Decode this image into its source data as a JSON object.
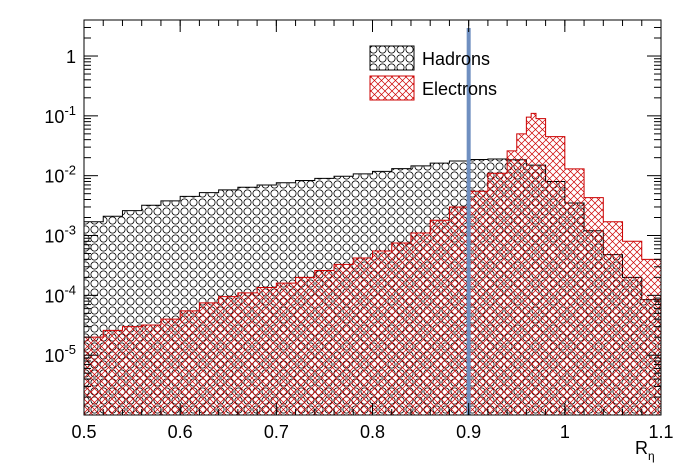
{
  "chart_data": {
    "type": "area",
    "xlabel": "R",
    "xlabel_sub": "η",
    "ylabel": "",
    "xlim": [
      0.5,
      1.1
    ],
    "ylim": [
      1e-06,
      4.0
    ],
    "yscale": "log",
    "grid": false,
    "legend_position": "top-center",
    "x_ticks": [
      0.5,
      0.6,
      0.7,
      0.8,
      0.9,
      1.0,
      1.1
    ],
    "x_tick_labels": [
      "0.5",
      "0.6",
      "0.7",
      "0.8",
      "0.9",
      "1",
      "1.1"
    ],
    "y_tick_labels": [
      {
        "base": "10",
        "exp": "-5",
        "value": 1e-05
      },
      {
        "base": "10",
        "exp": "-4",
        "value": 0.0001
      },
      {
        "base": "10",
        "exp": "-3",
        "value": 0.001
      },
      {
        "base": "10",
        "exp": "-2",
        "value": 0.01
      },
      {
        "base": "10",
        "exp": "-1",
        "value": 0.1
      },
      {
        "base": "1",
        "exp": "",
        "value": 1
      }
    ],
    "cut_line": {
      "x": 0.9,
      "color": "#6f8fc0"
    },
    "series": [
      {
        "name": "Hadrons",
        "color": "#000000",
        "pattern": "circles",
        "x": [
          0.5,
          0.52,
          0.54,
          0.56,
          0.58,
          0.6,
          0.62,
          0.64,
          0.66,
          0.68,
          0.7,
          0.72,
          0.74,
          0.76,
          0.78,
          0.8,
          0.82,
          0.84,
          0.86,
          0.88,
          0.9,
          0.92,
          0.94,
          0.96,
          0.98,
          1.0,
          1.02,
          1.04,
          1.06,
          1.08,
          1.1
        ],
        "values": [
          0.0017,
          0.0021,
          0.0026,
          0.0032,
          0.0038,
          0.0045,
          0.0052,
          0.0058,
          0.0064,
          0.007,
          0.0076,
          0.0083,
          0.009,
          0.0098,
          0.0107,
          0.0118,
          0.0131,
          0.0146,
          0.0162,
          0.0176,
          0.0186,
          0.019,
          0.0185,
          0.015,
          0.008,
          0.0035,
          0.0012,
          0.00048,
          0.0002,
          8.5e-05,
          4e-05
        ]
      },
      {
        "name": "Electrons",
        "color": "#cc0000",
        "pattern": "crosshatch",
        "x": [
          0.5,
          0.52,
          0.54,
          0.56,
          0.58,
          0.6,
          0.62,
          0.64,
          0.66,
          0.68,
          0.7,
          0.72,
          0.74,
          0.76,
          0.78,
          0.8,
          0.82,
          0.84,
          0.86,
          0.88,
          0.9,
          0.92,
          0.94,
          0.95,
          0.96,
          0.965,
          0.97,
          0.98,
          1.0,
          1.02,
          1.04,
          1.06,
          1.08,
          1.1
        ],
        "values": [
          2e-05,
          2.6e-05,
          3e-05,
          3.2e-05,
          4e-05,
          5.5e-05,
          7.5e-05,
          9.5e-05,
          0.00011,
          0.000135,
          0.00016,
          0.0002,
          0.00026,
          0.00033,
          0.00042,
          0.00055,
          0.00075,
          0.0011,
          0.0018,
          0.003,
          0.0055,
          0.011,
          0.026,
          0.05,
          0.095,
          0.11,
          0.09,
          0.045,
          0.013,
          0.0043,
          0.0017,
          0.0008,
          0.0004,
          0.00022
        ]
      }
    ]
  }
}
